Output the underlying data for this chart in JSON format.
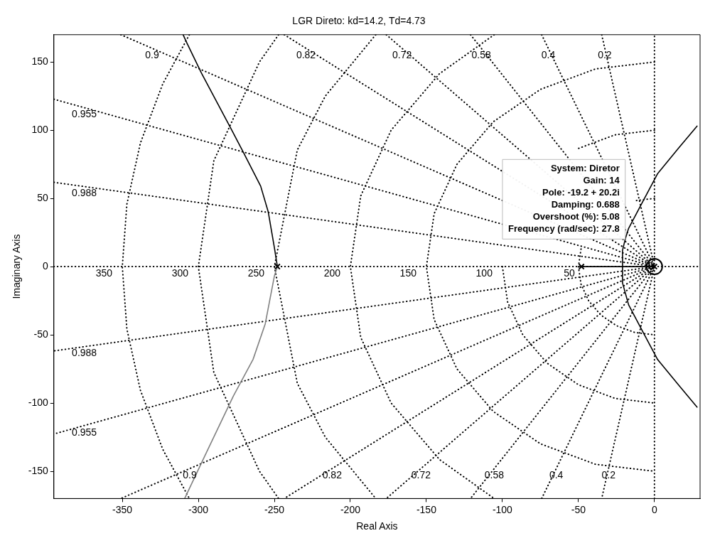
{
  "chart_data": {
    "type": "line",
    "title": "LGR Direto: kd=14.2, Td=4.73",
    "xlabel": "Real Axis",
    "ylabel": "Imaginary Axis",
    "xlim": [
      -395,
      30
    ],
    "xticks": [
      -350,
      -300,
      -250,
      -200,
      -150,
      -100,
      -50,
      0
    ],
    "ylim": [
      -170,
      170
    ],
    "yticks": [
      -150,
      -100,
      -50,
      0,
      50,
      100,
      150
    ],
    "series": [
      {
        "color": "#000000",
        "line_style": "dotted",
        "x": [
          -395,
          30
        ],
        "values": [
          0,
          0
        ]
      },
      {
        "color": "#000000",
        "line_style": "dotted",
        "x": [
          0,
          0
        ],
        "values": [
          -170,
          170
        ]
      },
      {
        "color": "#000000",
        "line_style": "dotted",
        "x": [
          -34.7,
          0,
          -34.7
        ],
        "values": [
          170,
          0,
          -170
        ]
      },
      {
        "color": "#000000",
        "line_style": "dotted",
        "x": [
          -74.2,
          0,
          -74.2
        ],
        "values": [
          170,
          0,
          -170
        ]
      },
      {
        "color": "#000000",
        "line_style": "dotted",
        "x": [
          -121,
          0,
          -121
        ],
        "values": [
          170,
          0,
          -170
        ]
      },
      {
        "color": "#000000",
        "line_style": "dotted",
        "x": [
          -176.4,
          0,
          -176.4
        ],
        "values": [
          170,
          0,
          -170
        ]
      },
      {
        "color": "#000000",
        "line_style": "dotted",
        "x": [
          -243.5,
          0,
          -243.5
        ],
        "values": [
          170,
          0,
          -170
        ]
      },
      {
        "color": "#000000",
        "line_style": "dotted",
        "x": [
          -351,
          0,
          -351
        ],
        "values": [
          170,
          0,
          -170
        ]
      },
      {
        "color": "#000000",
        "line_style": "dotted",
        "x": [
          -395,
          0,
          -395
        ],
        "values": [
          122.7,
          0,
          -122.7
        ]
      },
      {
        "color": "#000000",
        "line_style": "dotted",
        "x": [
          -395,
          0,
          -395
        ],
        "values": [
          61.8,
          0,
          -61.8
        ]
      },
      {
        "color": "#000000",
        "line_style": "dotted",
        "x": [
          0,
          -12.9,
          -25,
          -35.4,
          -43.3,
          -48.3,
          -50,
          -48.3,
          -43.3,
          -35.4,
          -25,
          -12.9,
          0
        ],
        "values": [
          50,
          48.3,
          null,
          null,
          null,
          12.9,
          0,
          -12.9,
          -25,
          -35.4,
          -43.3,
          -48.3,
          -50
        ]
      },
      {
        "color": "#000000",
        "line_style": "dotted",
        "x": [
          0,
          -25.9,
          -50,
          -70.7,
          -86.6,
          -96.6,
          -100,
          -96.6,
          -86.6,
          -70.7,
          -50,
          -25.9,
          0
        ],
        "values": [
          100,
          96.6,
          86.6,
          null,
          null,
          null,
          0,
          -25.9,
          -50,
          -70.7,
          -86.6,
          -96.6,
          -100
        ]
      },
      {
        "color": "#000000",
        "line_style": "dotted",
        "x": [
          0,
          -38.8,
          -75,
          -106.1,
          -129.9,
          -144.9,
          -150,
          -144.9,
          -129.9,
          -106.1,
          -75,
          -38.8,
          0
        ],
        "values": [
          150,
          144.9,
          129.9,
          106.1,
          75,
          38.8,
          0,
          -38.8,
          -75,
          -106.1,
          -129.9,
          -144.9,
          -150
        ]
      },
      {
        "color": "#000000",
        "line_style": "dotted",
        "x": [
          -105.4,
          -141.4,
          -173.2,
          -193.2,
          -200,
          -193.2,
          -173.2,
          -141.4,
          -105.4
        ],
        "values": [
          170,
          141.4,
          100,
          51.8,
          0,
          -51.8,
          -100,
          -141.4,
          -170
        ]
      },
      {
        "color": "#000000",
        "line_style": "dotted",
        "x": [
          -183.3,
          -216.5,
          -234.9,
          -250,
          -234.9,
          -216.5,
          -183.3
        ],
        "values": [
          170,
          125,
          85.5,
          0,
          -85.5,
          -125,
          -170
        ]
      },
      {
        "color": "#000000",
        "line_style": "dotted",
        "x": [
          -247.2,
          -259.8,
          -289.8,
          -300,
          -289.8,
          -259.8,
          -247.2
        ],
        "values": [
          170,
          150,
          77.6,
          0,
          -77.6,
          -150,
          -170
        ]
      },
      {
        "color": "#000000",
        "line_style": "dotted",
        "x": [
          -305.9,
          -323.4,
          -338.1,
          -347,
          -350,
          -347,
          -338.1,
          -323.4,
          -305.9
        ],
        "values": [
          170,
          133.9,
          90.6,
          45.7,
          0,
          -45.7,
          -90.6,
          -133.9,
          -170
        ]
      },
      {
        "color": "#000000",
        "x": [
          -248,
          -250,
          -254,
          -259,
          -270,
          -278,
          -298,
          -308,
          -310
        ],
        "values": [
          0,
          14,
          40,
          59,
          83,
          100,
          142,
          165,
          170
        ]
      },
      {
        "color": "#808080",
        "x": [
          -248,
          -250,
          -256,
          -264,
          -277,
          -295,
          -309
        ],
        "values": [
          0,
          -7,
          -42,
          -68,
          -95,
          -137,
          -170
        ]
      },
      {
        "color": "#000000",
        "x": [
          -48,
          0
        ],
        "values": [
          0,
          0
        ]
      },
      {
        "color": "#000000",
        "x": [
          28,
          16,
          2,
          -8,
          -17,
          -21,
          -21,
          -19.2,
          -17,
          -8,
          2,
          16,
          28
        ],
        "values": [
          -103,
          -87,
          -68,
          -47,
          -28,
          -12,
          12,
          20.2,
          28,
          47,
          68,
          87,
          103
        ]
      },
      {
        "type": "scatter",
        "color": "#000000",
        "marker": "cross",
        "x": [
          -248,
          -48,
          0
        ],
        "values": [
          0,
          0,
          0
        ]
      },
      {
        "type": "scatter",
        "color": "#000000",
        "x": [
          0
        ],
        "values": [
          0
        ]
      }
    ],
    "annotations": [
      {
        "text": "System: Diretor\nGain: 14\nPole: -19.2 + 20.2i\nDamping: 0.688\nOvershoot (%): 5.08\nFrequency (rad/sec): 27.8",
        "x": -19.2,
        "y": 20.2
      },
      {
        "text": "0.9",
        "x": -330.4,
        "y": 160
      },
      {
        "text": "0.82",
        "x": -229.2,
        "y": 160
      },
      {
        "text": "0.72",
        "x": -166,
        "y": 160
      },
      {
        "text": "0.58",
        "x": -113.9,
        "y": 160
      },
      {
        "text": "0.4",
        "x": -69.8,
        "y": 160
      },
      {
        "text": "0.2",
        "x": -32.7,
        "y": 160
      },
      {
        "text": "0.955",
        "x": -375,
        "y": 116.5
      },
      {
        "text": "0.988",
        "x": -375,
        "y": 58.6
      },
      {
        "text": "0.988",
        "x": -375,
        "y": -58.6
      },
      {
        "text": "0.955",
        "x": -375,
        "y": -116.5
      },
      {
        "text": "0.9",
        "x": -305.6,
        "y": -148
      },
      {
        "text": "0.82",
        "x": -212,
        "y": -148
      },
      {
        "text": "0.72",
        "x": -153.5,
        "y": -148
      },
      {
        "text": "0.58",
        "x": -105.4,
        "y": -148
      },
      {
        "text": "0.4",
        "x": -64.6,
        "y": -148
      },
      {
        "text": "0.2",
        "x": -30.2,
        "y": -148
      },
      {
        "text": "350",
        "x": -362,
        "y": 0
      },
      {
        "text": "300",
        "x": -312,
        "y": 0
      },
      {
        "text": "250",
        "x": -262,
        "y": 0
      },
      {
        "text": "200",
        "x": -212,
        "y": 0
      },
      {
        "text": "150",
        "x": -162,
        "y": 0
      },
      {
        "text": "100",
        "x": -112,
        "y": 0
      },
      {
        "text": "50",
        "x": -56,
        "y": 0
      }
    ]
  }
}
